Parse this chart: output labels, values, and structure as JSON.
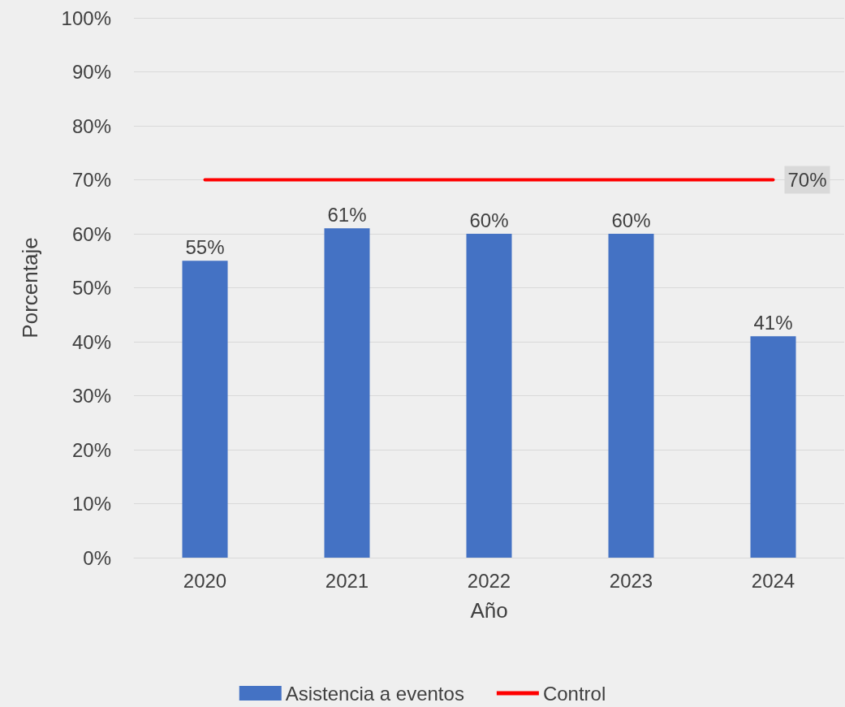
{
  "chart_data": {
    "type": "bar",
    "xlabel": "Año",
    "ylabel": "Porcentaje",
    "categories": [
      "2020",
      "2021",
      "2022",
      "2023",
      "2024"
    ],
    "series": [
      {
        "name": "Asistencia a eventos",
        "color": "#4472c4",
        "values": [
          55,
          61,
          60,
          60,
          41
        ],
        "value_labels": [
          "55%",
          "61%",
          "60%",
          "60%",
          "41%"
        ]
      },
      {
        "name": "Control",
        "type": "line",
        "color": "#ff0000",
        "values": [
          70,
          70,
          70,
          70,
          70
        ],
        "value_labels": [
          null,
          null,
          null,
          null,
          "70%"
        ]
      }
    ],
    "ylim": [
      0,
      100
    ],
    "yticks": [
      {
        "value": 0,
        "label": "0%"
      },
      {
        "value": 10,
        "label": "10%"
      },
      {
        "value": 20,
        "label": "20%"
      },
      {
        "value": 30,
        "label": "30%"
      },
      {
        "value": 40,
        "label": "40%"
      },
      {
        "value": 50,
        "label": "50%"
      },
      {
        "value": 60,
        "label": "60%"
      },
      {
        "value": 70,
        "label": "70%"
      },
      {
        "value": 80,
        "label": "80%"
      },
      {
        "value": 90,
        "label": "90%"
      },
      {
        "value": 100,
        "label": "100%"
      }
    ],
    "grid": "y",
    "legend": "bottom",
    "marker": "none"
  }
}
